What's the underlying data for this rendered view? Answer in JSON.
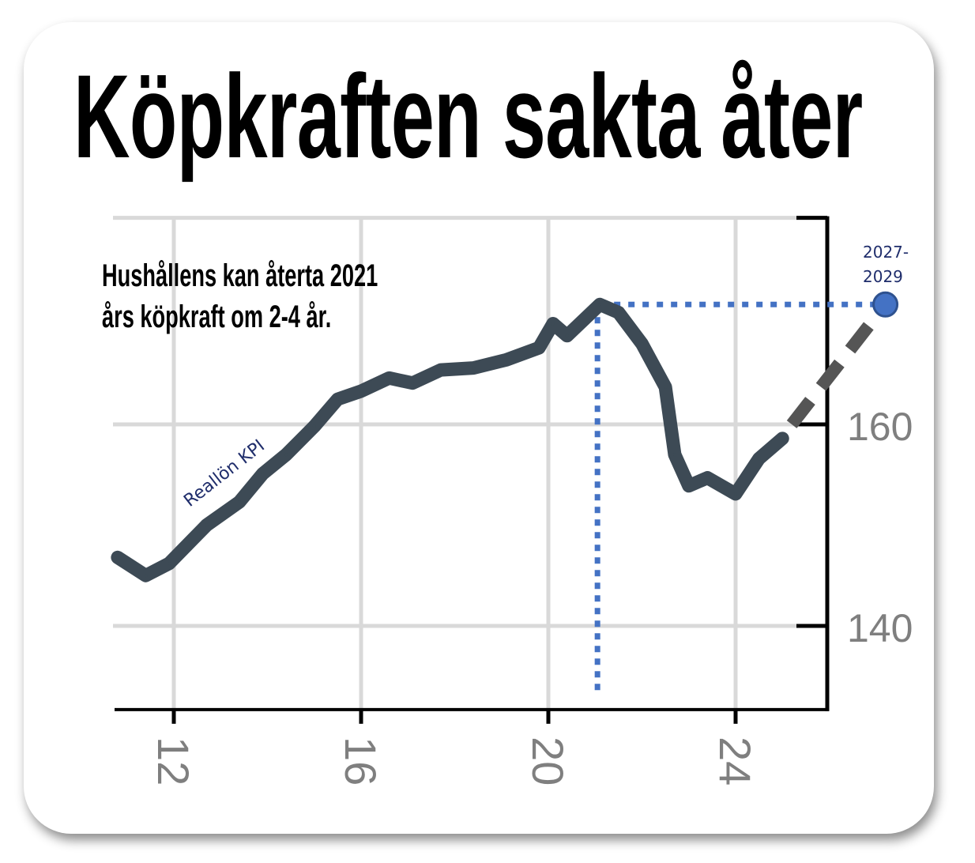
{
  "title": "Köpkraften sakta åter",
  "annotation": {
    "line1": "Hushållens kan återta 2021",
    "line2": "års köpkraft om 2-4 år."
  },
  "chart_data": {
    "type": "line",
    "title": "Köpkraften sakta åter",
    "xlabel": "",
    "ylabel": "",
    "x_ticks": [
      "12",
      "16",
      "20",
      "24"
    ],
    "y_ticks": [
      "140",
      "160"
    ],
    "xlim": [
      10.8,
      27.8
    ],
    "ylim": [
      131.7,
      180.5
    ],
    "grid": true,
    "series": [
      {
        "name": "Reallön KPI",
        "color": "#3d4a55",
        "x": [
          10.8,
          11.4,
          11.9,
          12.7,
          13.4,
          13.9,
          14.4,
          15.0,
          15.5,
          16.0,
          16.6,
          17.1,
          17.7,
          18.4,
          19.1,
          19.8,
          20.1,
          20.4,
          21.1,
          21.5,
          22.0,
          22.5,
          22.7,
          23.0,
          23.4,
          24.0,
          24.5,
          25.0
        ],
        "y": [
          146.8,
          145.0,
          146.2,
          150.0,
          152.3,
          155.1,
          157.0,
          159.8,
          162.5,
          163.3,
          164.6,
          164.1,
          165.4,
          165.6,
          166.4,
          167.6,
          170.0,
          168.8,
          171.9,
          171.1,
          168.0,
          163.7,
          157.0,
          153.9,
          154.7,
          153.1,
          156.6,
          158.6
        ]
      },
      {
        "name": "",
        "style": "dashed",
        "color": "#555555",
        "x": [
          25.2,
          27.2
        ],
        "y": [
          160.0,
          171.9
        ]
      }
    ],
    "reference": {
      "level_y": 171.9,
      "peak_x": 21.1,
      "target_x": 27.2,
      "color": "#4472c4",
      "target_label": "2027-\n2029",
      "target_label_line1": "2027-",
      "target_label_line2": "2029"
    }
  }
}
